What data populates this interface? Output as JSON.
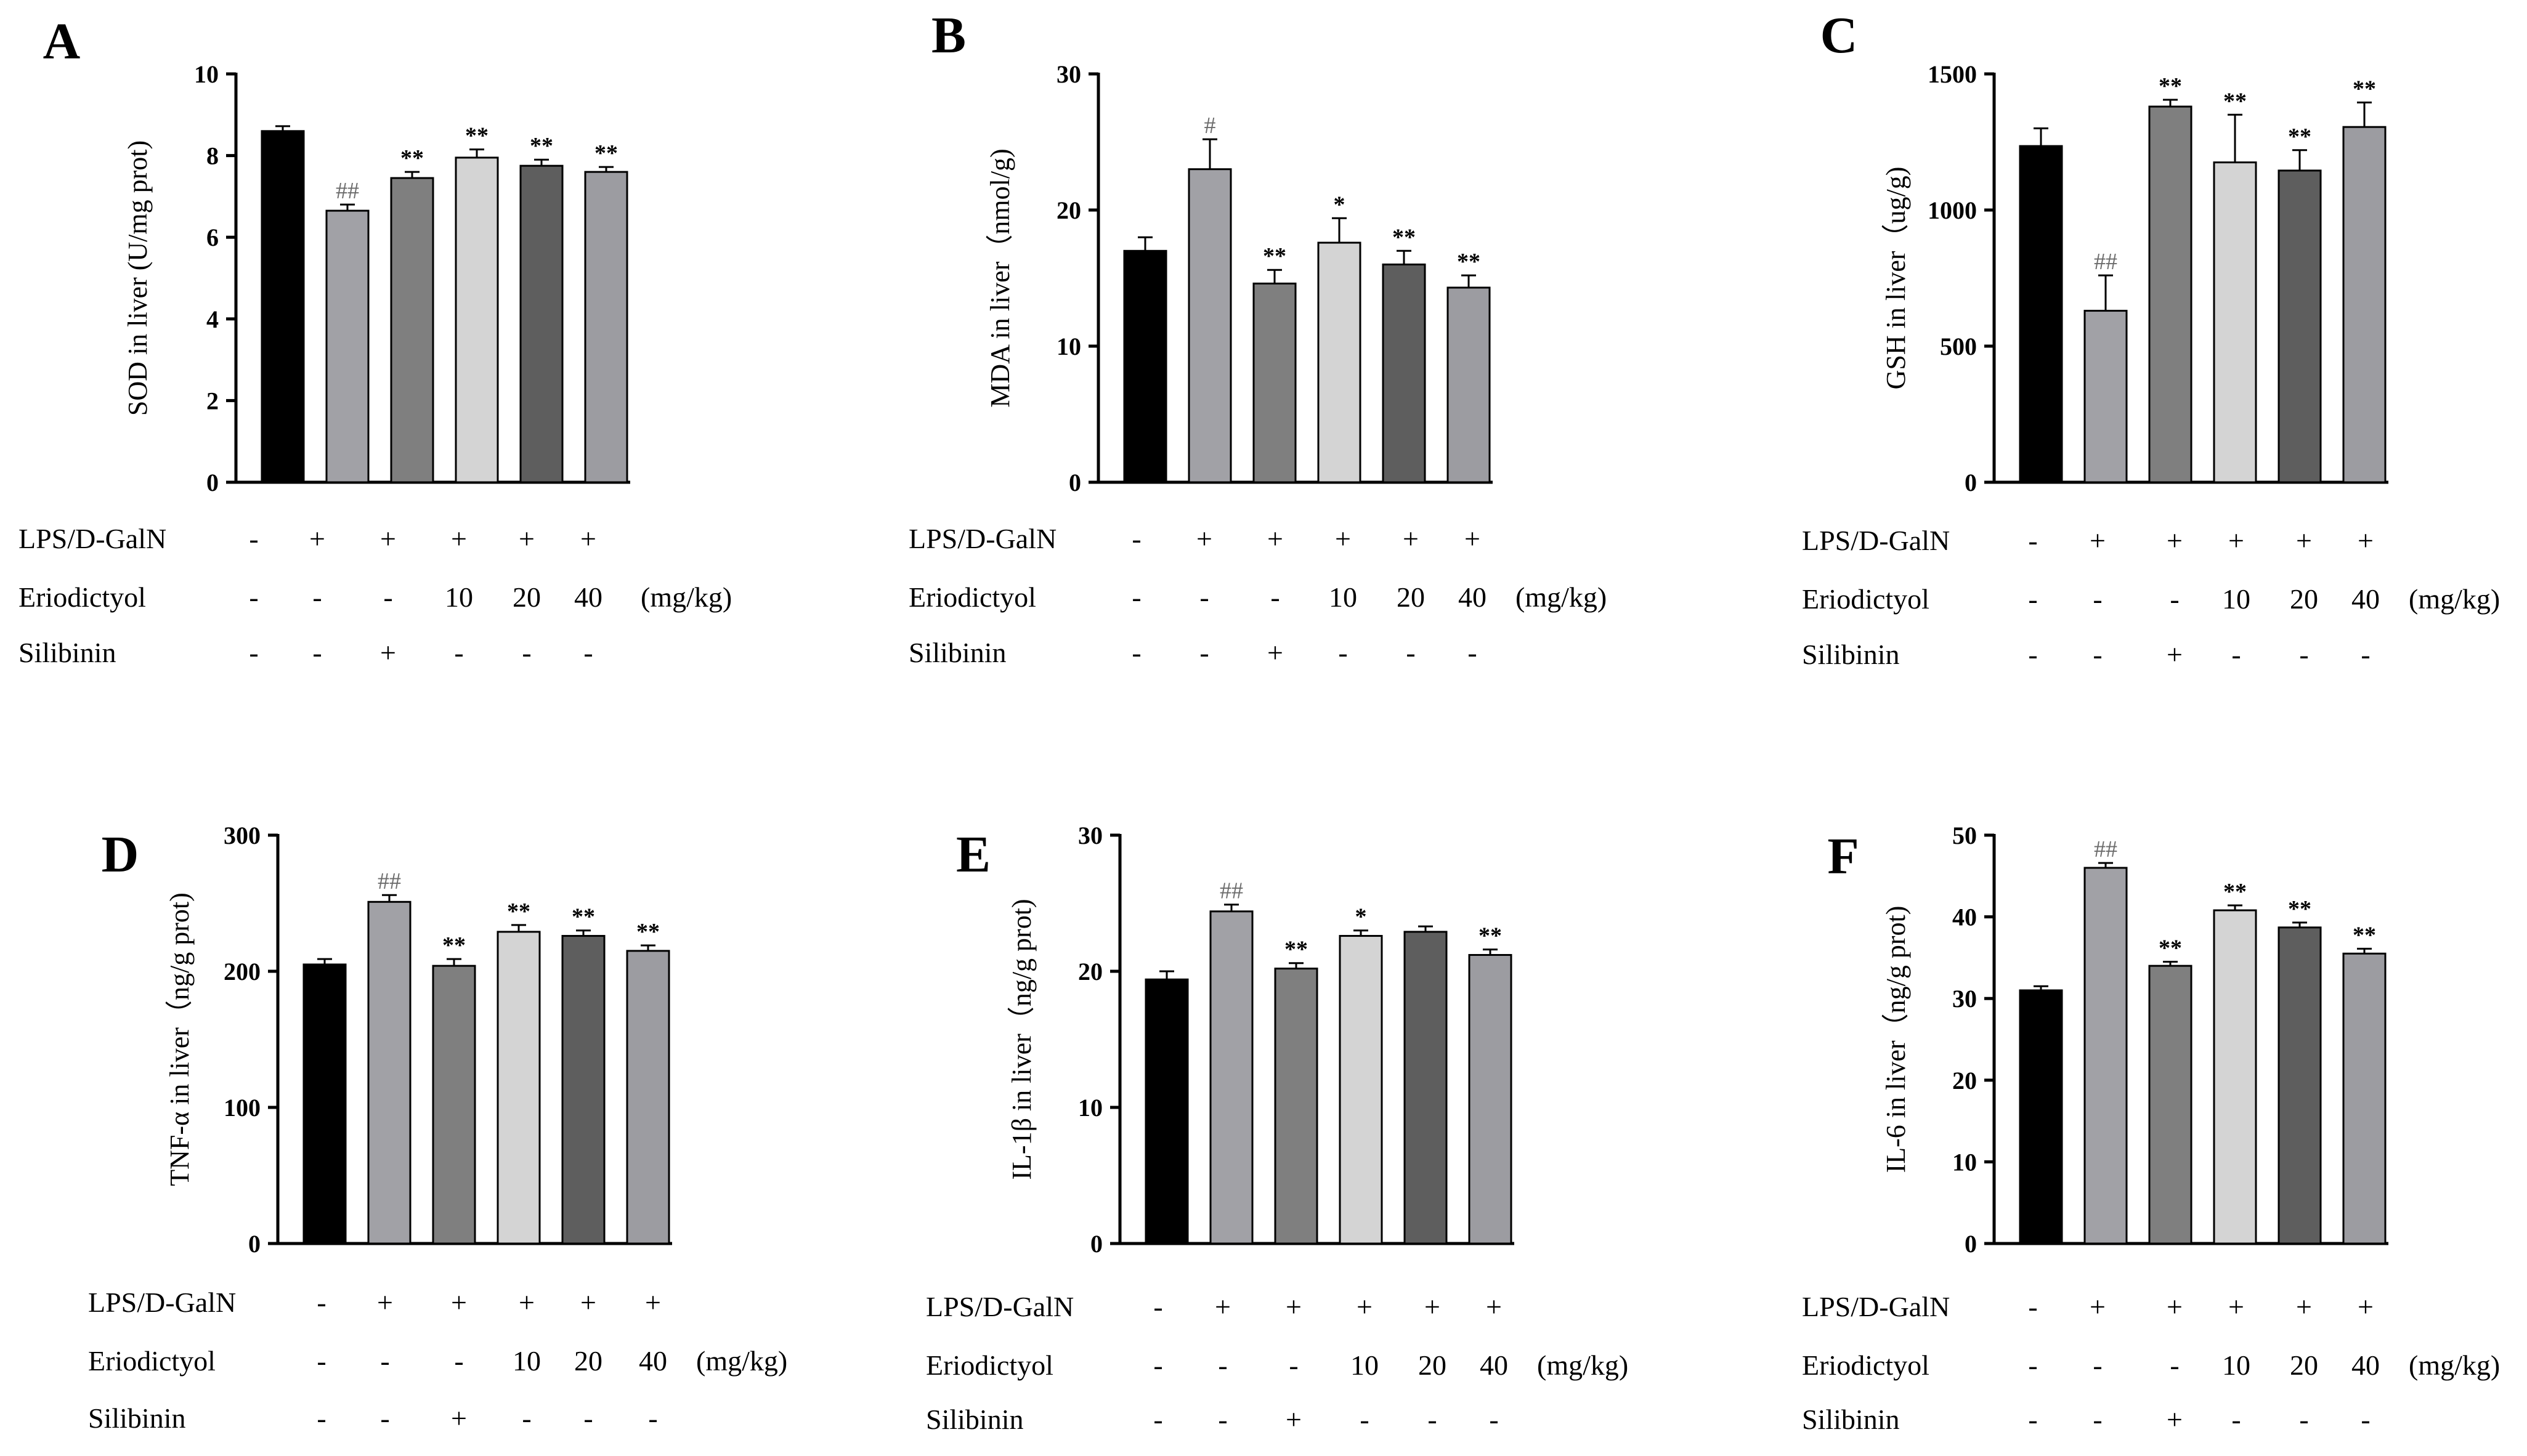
{
  "colors": {
    "bar_fills": [
      "#000000",
      "#a1a1a6",
      "#7f7f7f",
      "#d4d4d4",
      "#5e5e5e",
      "#9c9ca1"
    ],
    "axis": "#000000",
    "hash_marker": "#6b6b6b"
  },
  "conditions": {
    "row_labels": [
      "LPS/D-GalN",
      "Eriodictyol",
      "Silibinin"
    ],
    "unit": "(mg/kg)",
    "lps": [
      "-",
      "+",
      "+",
      "+",
      "+",
      "+"
    ],
    "eriodictyol": [
      "-",
      "-",
      "-",
      "10",
      "20",
      "40"
    ],
    "silibinin": [
      "-",
      "-",
      "+",
      "-",
      "-",
      "-"
    ]
  },
  "chart_data": [
    {
      "type": "bar",
      "panel": "A",
      "ylabel": "SOD in liver (U/mg prot)",
      "ylim": [
        0,
        10
      ],
      "yticks": [
        0,
        2,
        4,
        6,
        8,
        10
      ],
      "values": [
        8.6,
        6.65,
        7.45,
        7.95,
        7.75,
        7.6
      ],
      "errors": [
        0.12,
        0.15,
        0.15,
        0.2,
        0.15,
        0.12
      ],
      "markers": [
        "",
        "##",
        "**",
        "**",
        "**",
        "**"
      ]
    },
    {
      "type": "bar",
      "panel": "B",
      "ylabel": "MDA in liver（nmol/g)",
      "ylim": [
        0,
        30
      ],
      "yticks": [
        0,
        10,
        20,
        30
      ],
      "values": [
        17.0,
        23.0,
        14.6,
        17.6,
        16.0,
        14.3
      ],
      "errors": [
        1.0,
        2.2,
        1.0,
        1.8,
        1.0,
        0.9
      ],
      "markers": [
        "",
        "#",
        "**",
        "*",
        "**",
        "**"
      ]
    },
    {
      "type": "bar",
      "panel": "C",
      "ylabel": "GSH in liver（ug/g)",
      "ylim": [
        0,
        1500
      ],
      "yticks": [
        0,
        500,
        1000,
        1500
      ],
      "values": [
        1235,
        630,
        1380,
        1175,
        1145,
        1305
      ],
      "errors": [
        65,
        130,
        25,
        175,
        75,
        90
      ],
      "markers": [
        "",
        "##",
        "**",
        "**",
        "**",
        "**"
      ]
    },
    {
      "type": "bar",
      "panel": "D",
      "ylabel": "TNF-α in liver（ng/g prot)",
      "ylim": [
        0,
        300
      ],
      "yticks": [
        0,
        100,
        200,
        300
      ],
      "values": [
        205,
        251,
        204,
        229,
        226,
        215
      ],
      "errors": [
        4,
        5,
        5,
        5,
        4,
        4
      ],
      "markers": [
        "",
        "##",
        "**",
        "**",
        "**",
        "**"
      ]
    },
    {
      "type": "bar",
      "panel": "E",
      "ylabel": "IL-1β in liver（ng/g prot)",
      "ylim": [
        0,
        30
      ],
      "yticks": [
        0,
        10,
        20,
        30
      ],
      "values": [
        19.4,
        24.4,
        20.2,
        22.6,
        22.9,
        21.2
      ],
      "errors": [
        0.6,
        0.5,
        0.4,
        0.4,
        0.4,
        0.4
      ],
      "markers": [
        "",
        "##",
        "**",
        "*",
        "",
        "**"
      ]
    },
    {
      "type": "bar",
      "panel": "F",
      "ylabel": "IL-6 in liver（ng/g prot)",
      "ylim": [
        0,
        50
      ],
      "yticks": [
        0,
        10,
        20,
        30,
        40,
        50
      ],
      "values": [
        31.0,
        46.0,
        34.0,
        40.8,
        38.7,
        35.5
      ],
      "errors": [
        0.5,
        0.6,
        0.5,
        0.6,
        0.6,
        0.6
      ],
      "markers": [
        "",
        "##",
        "**",
        "**",
        "**",
        "**"
      ]
    }
  ]
}
